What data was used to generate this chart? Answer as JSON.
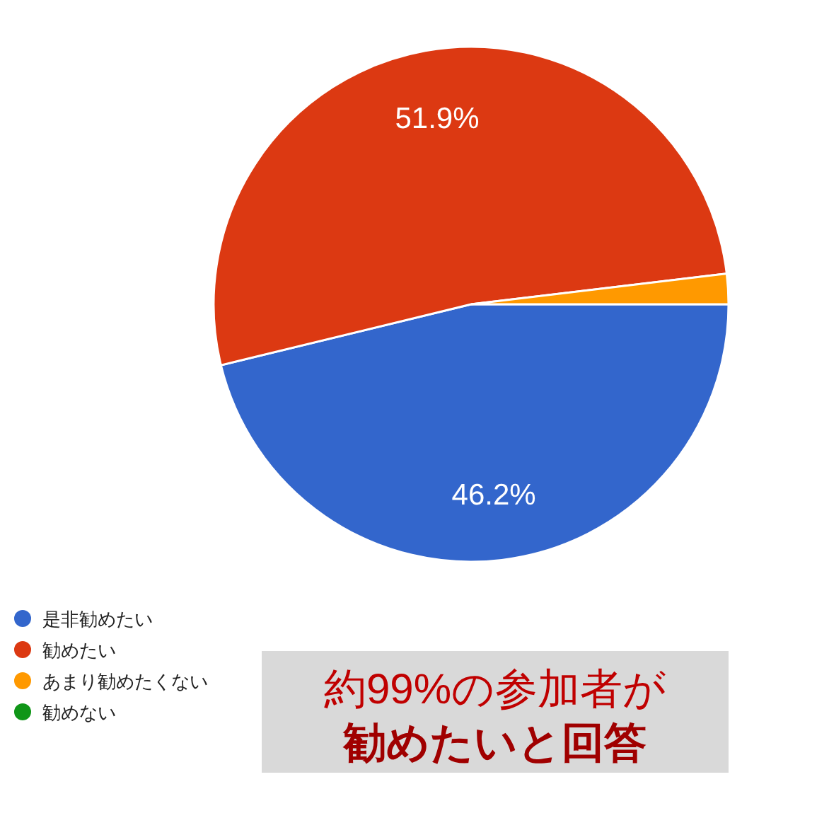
{
  "chart_data": {
    "type": "pie",
    "categories": [
      "是非勧めたい",
      "勧めたい",
      "あまり勧めたくない",
      "勧めない"
    ],
    "values": [
      46.2,
      51.9,
      1.9,
      0
    ],
    "colors": [
      "#3366cc",
      "#dc3912",
      "#ff9900",
      "#109618"
    ],
    "value_labels": [
      "46.2%",
      "51.9%",
      null,
      null
    ],
    "legend": "bottom left",
    "annotations": [
      "約99%の参加者が",
      "勧めたいと回答"
    ]
  }
}
